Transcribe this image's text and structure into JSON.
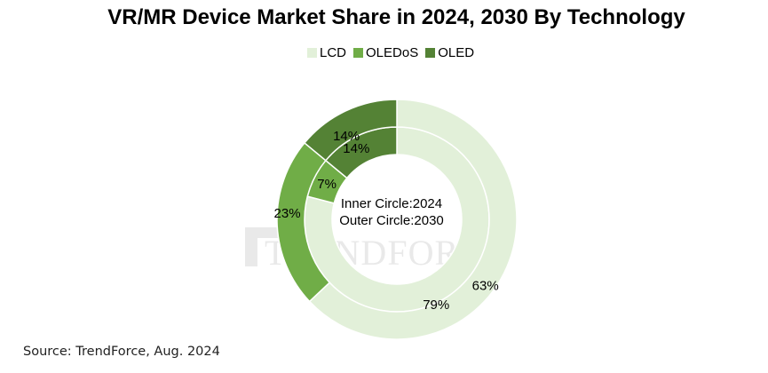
{
  "title": "VR/MR Device Market Share in 2024, 2030 By Technology",
  "source": "Source: TrendForce, Aug. 2024",
  "watermark": "TRENDFORCE",
  "center_label": {
    "line1": "Inner Circle:2024",
    "line2": "Outer Circle:2030"
  },
  "colors": {
    "LCD": "#e2f0d9",
    "OLEDoS": "#70ad47",
    "OLED": "#548235",
    "stroke": "#ffffff"
  },
  "chart_data": {
    "type": "donut",
    "categories": [
      "LCD",
      "OLEDoS",
      "OLED"
    ],
    "legend_position": "top-center",
    "series": [
      {
        "name": "2024",
        "ring": "inner",
        "values": [
          79,
          7,
          14
        ],
        "labels": [
          "79%",
          "7%",
          "14%"
        ]
      },
      {
        "name": "2030",
        "ring": "outer",
        "values": [
          63,
          23,
          14
        ],
        "labels": [
          "63%",
          "23%",
          "14%"
        ]
      }
    ]
  }
}
